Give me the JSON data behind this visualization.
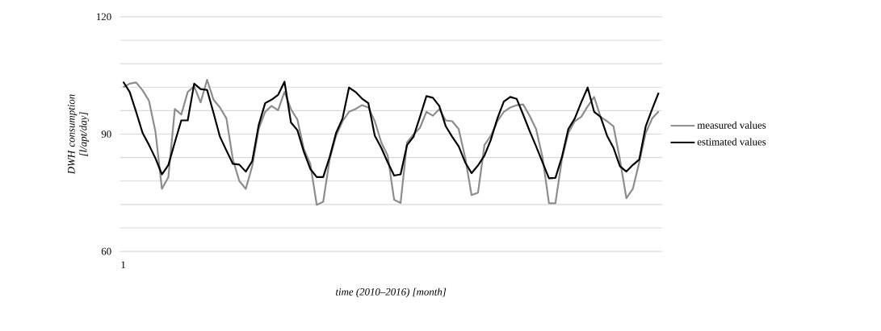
{
  "chart_data": {
    "type": "line",
    "xlabel": "time (2010–2016) [month]",
    "ylabel": "DWH consumption [l/apt/day]",
    "categories": [
      "1",
      null,
      null,
      null,
      null,
      null,
      null,
      null,
      null,
      null,
      null,
      null,
      null,
      null,
      null,
      null,
      null,
      null,
      null,
      null,
      null,
      null,
      null,
      null,
      null,
      null,
      null,
      null,
      null,
      null,
      null,
      null,
      null,
      null,
      null,
      null,
      null,
      null,
      null,
      null,
      null,
      null,
      null,
      null,
      null,
      null,
      null,
      null,
      null,
      null,
      null,
      null,
      null,
      null,
      null,
      null,
      null,
      null,
      null,
      null,
      null,
      null,
      null,
      null,
      null,
      null,
      null,
      null,
      null,
      null,
      null,
      null,
      null,
      null,
      null,
      null,
      null,
      null,
      null,
      null,
      null,
      null,
      null,
      null
    ],
    "series": [
      {
        "name": "measured values",
        "color": "#8c8c8c",
        "values": [
          102,
          102.9,
          103.2,
          101.2,
          98.5,
          90.6,
          76,
          79,
          96.4,
          95,
          100.8,
          102.2,
          98.1,
          103.9,
          98.8,
          96.8,
          94,
          83.5,
          78,
          76,
          81.8,
          91.3,
          95.7,
          97.2,
          96.1,
          100.8,
          96.4,
          93.7,
          86.2,
          82.4,
          71.9,
          72.7,
          83.5,
          89.6,
          93.3,
          95.7,
          96.4,
          97.4,
          96.8,
          93.3,
          87.9,
          84.5,
          73.2,
          72.4,
          87.9,
          89.9,
          91.6,
          95.7,
          94.7,
          96.4,
          93.5,
          93.3,
          91.3,
          84.1,
          74.4,
          75,
          87.2,
          89.6,
          93.3,
          95.7,
          96.8,
          97.4,
          97.6,
          94.7,
          91.3,
          84.1,
          72.3,
          72.3,
          83.5,
          90.3,
          93.3,
          94.4,
          97.1,
          99.5,
          94.4,
          93.3,
          92,
          83.5,
          73.6,
          76,
          82.8,
          90.3,
          94,
          95.8
        ]
      },
      {
        "name": "estimated values",
        "color": "#000000",
        "values": [
          103.4,
          100.8,
          95.7,
          90.3,
          87.2,
          83.8,
          79.7,
          82.1,
          87.9,
          93.5,
          93.5,
          102.9,
          101.5,
          101.3,
          95.4,
          89.3,
          85.8,
          82.4,
          82.2,
          80.4,
          83.1,
          92.3,
          97.9,
          98.8,
          100,
          103.4,
          93,
          91,
          85.5,
          81.1,
          79,
          79,
          84.1,
          90.3,
          94,
          101.9,
          100.8,
          99.1,
          97.9,
          89.6,
          86.5,
          82.8,
          79.4,
          79.7,
          87.2,
          89.3,
          94.4,
          99.7,
          99.3,
          97.2,
          92,
          89.3,
          86.9,
          82.8,
          80,
          82,
          84.5,
          88.6,
          94,
          98.3,
          99.5,
          99,
          95,
          90.8,
          86.9,
          82.8,
          78.7,
          78.8,
          84.1,
          91.3,
          94,
          98.1,
          101.9,
          95.7,
          94.4,
          89.6,
          86.5,
          81.8,
          80.4,
          82.1,
          83.5,
          92,
          96.4,
          100.6
        ]
      }
    ],
    "ylim": [
      60,
      120
    ],
    "yticks": [
      60,
      {
        "value": 66,
        "label": null
      },
      {
        "value": 72,
        "label": null
      },
      {
        "value": 78,
        "label": null
      },
      {
        "value": 84,
        "label": null
      },
      90,
      {
        "value": 96,
        "label": null
      },
      {
        "value": 102,
        "label": null
      },
      {
        "value": 108,
        "label": null
      },
      {
        "value": 114,
        "label": null
      },
      120
    ],
    "grid": "y",
    "legend": "right",
    "marker": "none",
    "line_style": "solid"
  }
}
